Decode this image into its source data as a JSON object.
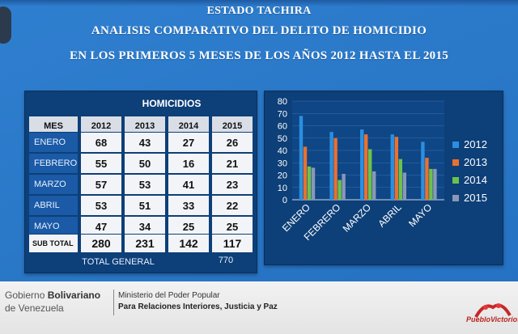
{
  "header": {
    "line1": "ESTADO TACHIRA",
    "line2": "ANALISIS COMPARATIVO DEL DELITO DE HOMICIDIO",
    "line3": "EN LOS PRIMEROS 5 MESES DE LOS AÑOS 2012 HASTA EL 2015"
  },
  "table": {
    "title": "HOMICIDIOS",
    "columns": [
      "MES",
      "2012",
      "2013",
      "2014",
      "2015"
    ],
    "rows": [
      {
        "mes": "ENERO",
        "values": [
          "68",
          "43",
          "27",
          "26"
        ]
      },
      {
        "mes": "FEBRERO",
        "values": [
          "55",
          "50",
          "16",
          "21"
        ]
      },
      {
        "mes": "MARZO",
        "values": [
          "57",
          "53",
          "41",
          "23"
        ]
      },
      {
        "mes": "ABRIL",
        "values": [
          "53",
          "51",
          "33",
          "22"
        ]
      },
      {
        "mes": "MAYO",
        "values": [
          "47",
          "34",
          "25",
          "25"
        ]
      }
    ],
    "subtotal": {
      "label": "SUB TOTAL",
      "values": [
        "280",
        "231",
        "142",
        "117"
      ]
    },
    "total_label": "TOTAL GENERAL",
    "total_value": "770"
  },
  "chart_data": {
    "type": "bar",
    "categories": [
      "ENERO",
      "FEBRERO",
      "MARZO",
      "ABRIL",
      "MAYO"
    ],
    "series": [
      {
        "name": "2012",
        "values": [
          68,
          55,
          57,
          53,
          47
        ],
        "color": "#2b8fe0"
      },
      {
        "name": "2013",
        "values": [
          43,
          50,
          53,
          51,
          34
        ],
        "color": "#e9712f"
      },
      {
        "name": "2014",
        "values": [
          27,
          16,
          41,
          33,
          25
        ],
        "color": "#6cc24a"
      },
      {
        "name": "2015",
        "values": [
          26,
          21,
          23,
          22,
          25
        ],
        "color": "#8a97b8"
      }
    ],
    "yticks": [
      "0",
      "10",
      "20",
      "30",
      "40",
      "50",
      "60",
      "70",
      "80"
    ],
    "ylim": [
      0,
      80
    ],
    "grid": true,
    "legend": "right"
  },
  "footer": {
    "gob_prefix": "Gobierno ",
    "gob_bold": "Bolivariano",
    "gob_line2": "de Venezuela",
    "ministry_line1": "Ministerio del Poder Popular",
    "ministry_line2": "Para Relaciones Interiores, Justicia y Paz",
    "logo_text": "PuebloVictorioso"
  }
}
